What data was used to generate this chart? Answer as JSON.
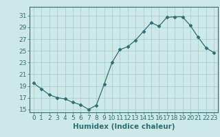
{
  "x": [
    0,
    1,
    2,
    3,
    4,
    5,
    6,
    7,
    8,
    9,
    10,
    11,
    12,
    13,
    14,
    15,
    16,
    17,
    18,
    19,
    20,
    21,
    22,
    23
  ],
  "y": [
    19.5,
    18.5,
    17.5,
    17.0,
    16.8,
    16.2,
    15.8,
    15.0,
    15.7,
    19.3,
    23.0,
    25.2,
    25.7,
    26.8,
    28.3,
    29.8,
    29.2,
    30.7,
    30.8,
    30.8,
    29.3,
    27.3,
    25.5,
    24.7
  ],
  "line_color": "#2d6e6e",
  "marker": "D",
  "marker_size": 2.5,
  "xlabel": "Humidex (Indice chaleur)",
  "xlim": [
    -0.5,
    23.5
  ],
  "ylim": [
    14.5,
    32.5
  ],
  "yticks": [
    15,
    17,
    19,
    21,
    23,
    25,
    27,
    29,
    31
  ],
  "xticks": [
    0,
    1,
    2,
    3,
    4,
    5,
    6,
    7,
    8,
    9,
    10,
    11,
    12,
    13,
    14,
    15,
    16,
    17,
    18,
    19,
    20,
    21,
    22,
    23
  ],
  "background_color": "#cce8e8",
  "grid_color": "#aacece",
  "label_fontsize": 7.5,
  "tick_fontsize": 6.5
}
